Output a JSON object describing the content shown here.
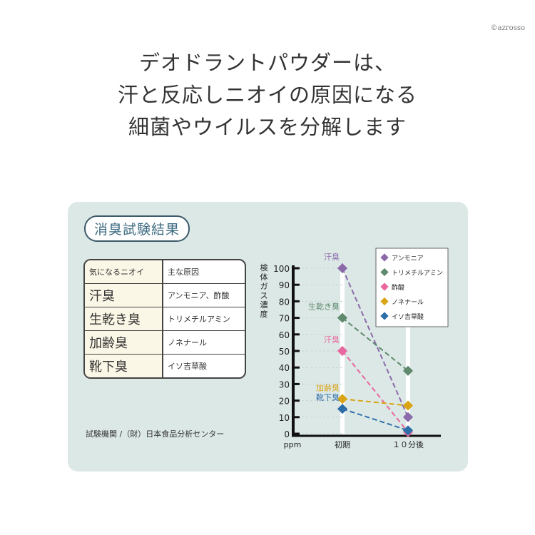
{
  "credit": "©azrosso",
  "headline": [
    "デオドラントパウダーは、",
    "汗と反応しニオイの原因になる",
    "細菌やウイルスを分解します"
  ],
  "panel": {
    "badge": "消臭試験結果",
    "table": {
      "headers": [
        "気になるニオイ",
        "主な原因"
      ],
      "rows": [
        [
          "汗臭",
          "アンモニア、酢酸"
        ],
        [
          "生乾き臭",
          "トリメチルアミン"
        ],
        [
          "加齢臭",
          "ノネナール"
        ],
        [
          "靴下臭",
          "イソ吉草酸"
        ]
      ]
    },
    "source": "試験機関 /（財）日本食品分析センター"
  },
  "chart_data": {
    "type": "line",
    "ylabel": "検体ガス濃度",
    "unit": "ppm",
    "categories": [
      "初期",
      "１０分後"
    ],
    "ylim": [
      0,
      100
    ],
    "yticks": [
      "0",
      "10",
      "20",
      "30",
      "40",
      "50",
      "60",
      "70",
      "80",
      "90",
      "100"
    ],
    "legend_position": "top-right",
    "series": [
      {
        "name": "アンモニア",
        "annotation": "汗臭",
        "values": [
          100,
          10
        ],
        "color": "#8b6aaa"
      },
      {
        "name": "トリメチルアミン",
        "annotation": "生乾き臭",
        "values": [
          70,
          38
        ],
        "color": "#5f8a6e"
      },
      {
        "name": "酢酸",
        "annotation": "汗臭",
        "values": [
          50,
          1
        ],
        "color": "#e8679f"
      },
      {
        "name": "ノネナール",
        "annotation": "加齢臭",
        "values": [
          21,
          17
        ],
        "color": "#d9a514"
      },
      {
        "name": "イソ吉草酸",
        "annotation": "靴下臭",
        "values": [
          15,
          2
        ],
        "color": "#2d6ea8"
      }
    ]
  }
}
